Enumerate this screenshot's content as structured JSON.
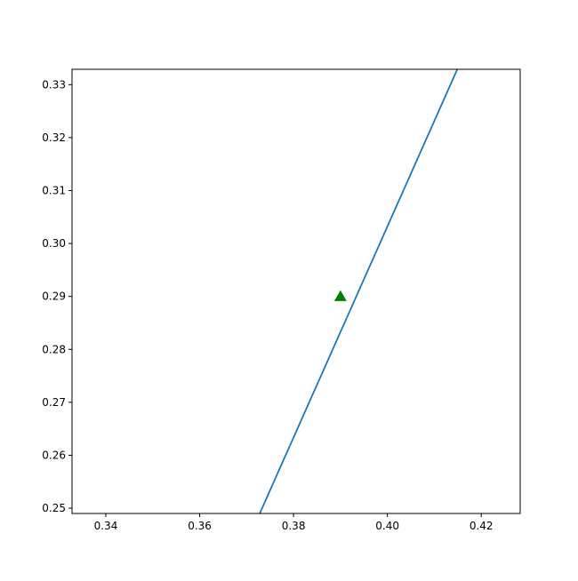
{
  "chart_data": {
    "type": "line",
    "title": "",
    "xlabel": "",
    "ylabel": "",
    "xlim": [
      0.3328,
      0.4283
    ],
    "ylim": [
      0.249,
      0.3329
    ],
    "grid": false,
    "xticks": [
      "0.34",
      "0.36",
      "0.38",
      "0.40",
      "0.42"
    ],
    "yticks": [
      "0.25",
      "0.26",
      "0.27",
      "0.28",
      "0.29",
      "0.30",
      "0.31",
      "0.32",
      "0.33"
    ],
    "series": [
      {
        "type": "line",
        "color": "#1f77b4",
        "x": [
          0.3728,
          0.4149
        ],
        "y": [
          0.249,
          0.3329
        ]
      }
    ],
    "markers": [
      {
        "shape": "triangle-up",
        "color": "#008000",
        "x": 0.39,
        "y": 0.29
      }
    ]
  }
}
